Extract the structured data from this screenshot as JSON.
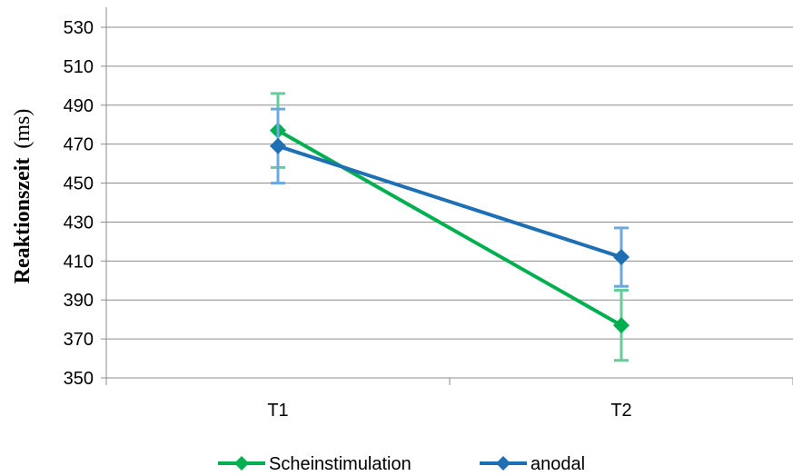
{
  "chart_data": {
    "type": "line",
    "categories": [
      "T1",
      "T2"
    ],
    "ylabel_bold": "Reaktionszeit",
    "ylabel_unit": "(ms)",
    "ylim": [
      350,
      530
    ],
    "yticks": [
      350,
      370,
      390,
      410,
      430,
      450,
      470,
      490,
      510,
      530
    ],
    "grid": true,
    "legend_position": "bottom",
    "series": [
      {
        "name": "Scheinstimulation",
        "color": "#00B050",
        "error_color": "#66CC99",
        "values": [
          477,
          377
        ],
        "errors": [
          19,
          18
        ]
      },
      {
        "name": "anodal",
        "color": "#1F6FB5",
        "error_color": "#6FA8DC",
        "values": [
          469,
          412
        ],
        "errors": [
          19,
          15
        ]
      }
    ]
  }
}
